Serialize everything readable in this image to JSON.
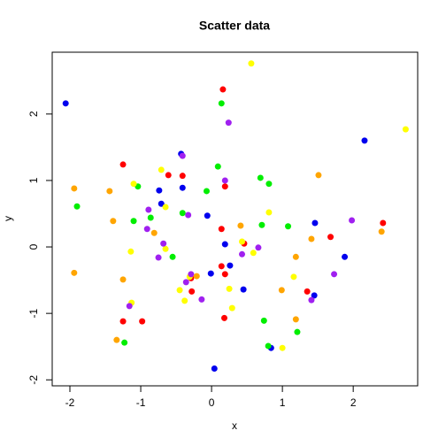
{
  "chart_data": {
    "type": "scatter",
    "title": "Scatter data",
    "x_label": "x",
    "y_label": "y",
    "xlim": [
      -2.25,
      2.91
    ],
    "ylim": [
      -2.09,
      2.93
    ],
    "xticks": [
      -2,
      -1,
      0,
      1,
      2
    ],
    "yticks": [
      -2,
      -1,
      0,
      1,
      2
    ],
    "series": [
      {
        "color": "#ff0000",
        "x": [
          0.16,
          -1.25,
          -0.61,
          -0.41,
          0.19,
          0.14,
          0.46,
          0.14,
          0.19,
          -0.29,
          1.68,
          2.42,
          -1.25,
          -0.98,
          -0.28,
          0.18,
          1.35
        ],
        "values": [
          2.37,
          1.24,
          1.08,
          1.07,
          0.91,
          0.27,
          0.05,
          -0.29,
          -0.41,
          -0.47,
          0.15,
          0.36,
          -1.12,
          -1.12,
          -0.67,
          -1.07,
          -0.67
        ]
      },
      {
        "color": "#0000ee",
        "x": [
          -2.06,
          2.16,
          -0.43,
          -0.74,
          -0.71,
          -0.41,
          -0.06,
          0.19,
          0.26,
          -0.01,
          0.45,
          1.46,
          1.88,
          1.45,
          0.84,
          0.04
        ],
        "values": [
          2.16,
          1.6,
          1.4,
          0.85,
          0.65,
          0.89,
          0.47,
          0.04,
          -0.28,
          -0.4,
          -0.64,
          0.36,
          -0.15,
          -0.73,
          -1.52,
          -1.83
        ]
      },
      {
        "color": "#00ee00",
        "x": [
          0.14,
          0.09,
          -0.07,
          -1.04,
          0.69,
          0.81,
          -1.9,
          -0.41,
          -0.86,
          -1.1,
          0.71,
          1.08,
          -0.55,
          0.74,
          0.8,
          1.21,
          -1.23
        ],
        "values": [
          2.16,
          1.21,
          0.84,
          0.91,
          1.04,
          0.95,
          0.61,
          0.51,
          0.44,
          0.39,
          0.33,
          0.31,
          -0.15,
          -1.11,
          -1.49,
          -1.28,
          -1.44
        ]
      },
      {
        "color": "#ffff00",
        "x": [
          0.56,
          2.74,
          -0.71,
          -1.1,
          -0.65,
          0.81,
          0.43,
          0.59,
          -1.14,
          -0.65,
          -0.31,
          1.16,
          -0.45,
          0.25,
          -0.38,
          -1.13,
          0.29,
          1.0
        ],
        "values": [
          2.76,
          1.77,
          1.16,
          0.95,
          0.6,
          0.52,
          0.08,
          -0.09,
          -0.07,
          -0.03,
          -0.45,
          -0.45,
          -0.65,
          -0.63,
          -0.81,
          -0.84,
          -0.92,
          -1.52
        ]
      },
      {
        "color": "#a020f0",
        "x": [
          0.24,
          -0.41,
          0.19,
          -0.33,
          -0.89,
          -0.91,
          -0.68,
          -0.75,
          0.43,
          0.66,
          1.98,
          -0.36,
          -0.14,
          -1.16,
          1.73,
          1.41,
          -0.29
        ],
        "values": [
          1.87,
          1.37,
          1.0,
          0.48,
          0.56,
          0.27,
          0.05,
          -0.16,
          -0.11,
          -0.01,
          0.4,
          -0.53,
          -0.79,
          -0.89,
          -0.41,
          -0.8,
          -0.41
        ]
      },
      {
        "color": "#ffa500",
        "x": [
          -1.94,
          -1.44,
          -1.39,
          -0.81,
          0.41,
          1.51,
          1.41,
          2.4,
          1.19,
          -1.94,
          -1.25,
          -0.21,
          0.99,
          1.19,
          -1.34
        ],
        "values": [
          0.88,
          0.84,
          0.39,
          0.21,
          0.32,
          1.08,
          0.12,
          0.23,
          -0.15,
          -0.39,
          -0.49,
          -0.44,
          -0.65,
          -1.09,
          -1.4
        ]
      }
    ]
  }
}
